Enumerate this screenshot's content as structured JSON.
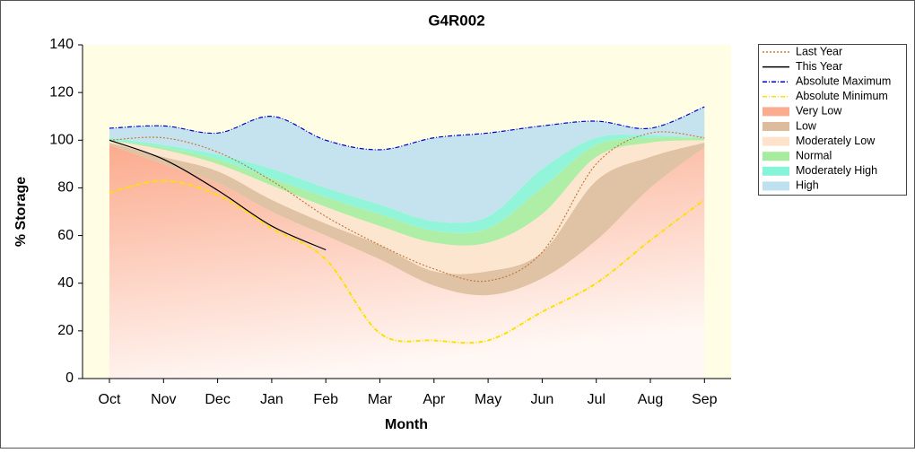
{
  "chart_data": {
    "type": "line",
    "title": "G4R002",
    "x_label": "Month",
    "y_label": "% Storage",
    "categories": [
      "Oct",
      "Nov",
      "Dec",
      "Jan",
      "Feb",
      "Mar",
      "Apr",
      "May",
      "Jun",
      "Jul",
      "Aug",
      "Sep"
    ],
    "ylim": [
      0,
      140
    ],
    "yticks": [
      0,
      20,
      40,
      60,
      80,
      100,
      120,
      140
    ],
    "series": [
      {
        "name": "Last Year",
        "style": "dotted",
        "color": "#c87a3c",
        "values": [
          100,
          101,
          95,
          83,
          68,
          56,
          46,
          41,
          53,
          90,
          103,
          101
        ]
      },
      {
        "name": "This Year",
        "style": "solid",
        "color": "#000000",
        "values": [
          100,
          92,
          79,
          64,
          54,
          null,
          null,
          null,
          null,
          null,
          null,
          null
        ]
      },
      {
        "name": "Absolute Maximum",
        "style": "dashdot",
        "color": "#0000cc",
        "values": [
          105,
          106,
          103,
          110,
          100,
          96,
          101,
          103,
          106,
          108,
          105,
          114
        ]
      },
      {
        "name": "Absolute Minimum",
        "style": "dashdot",
        "color": "#ffe000",
        "values": [
          78,
          83,
          77,
          63,
          50,
          19,
          16,
          16,
          28,
          40,
          58,
          75
        ]
      },
      {
        "name": "Very Low",
        "style": "area",
        "color": "#fbab8e",
        "values": [
          98,
          90,
          82,
          70,
          60,
          50,
          39,
          35,
          42,
          58,
          80,
          97
        ]
      },
      {
        "name": "Low",
        "style": "area",
        "color": "#dcbc9c",
        "values": [
          99,
          93,
          87,
          75,
          65,
          56,
          45,
          45,
          53,
          83,
          93,
          99
        ]
      },
      {
        "name": "Moderately Low",
        "style": "area",
        "color": "#fde3cc",
        "values": [
          100,
          96,
          90,
          81,
          72,
          64,
          57,
          57,
          69,
          93,
          99,
          100
        ]
      },
      {
        "name": "Normal",
        "style": "area",
        "color": "#a6ec9e",
        "values": [
          100,
          97,
          92,
          84,
          76,
          69,
          62,
          63,
          80,
          98,
          101,
          101
        ]
      },
      {
        "name": "Moderately High",
        "style": "area",
        "color": "#86f4d8",
        "values": [
          101,
          98,
          94,
          88,
          80,
          73,
          66,
          68,
          88,
          101,
          102,
          101
        ]
      },
      {
        "name": "High",
        "style": "area",
        "color": "#bfe0ee",
        "values": [
          105,
          106,
          103,
          110,
          100,
          96,
          101,
          103,
          106,
          108,
          105,
          114
        ]
      }
    ]
  }
}
